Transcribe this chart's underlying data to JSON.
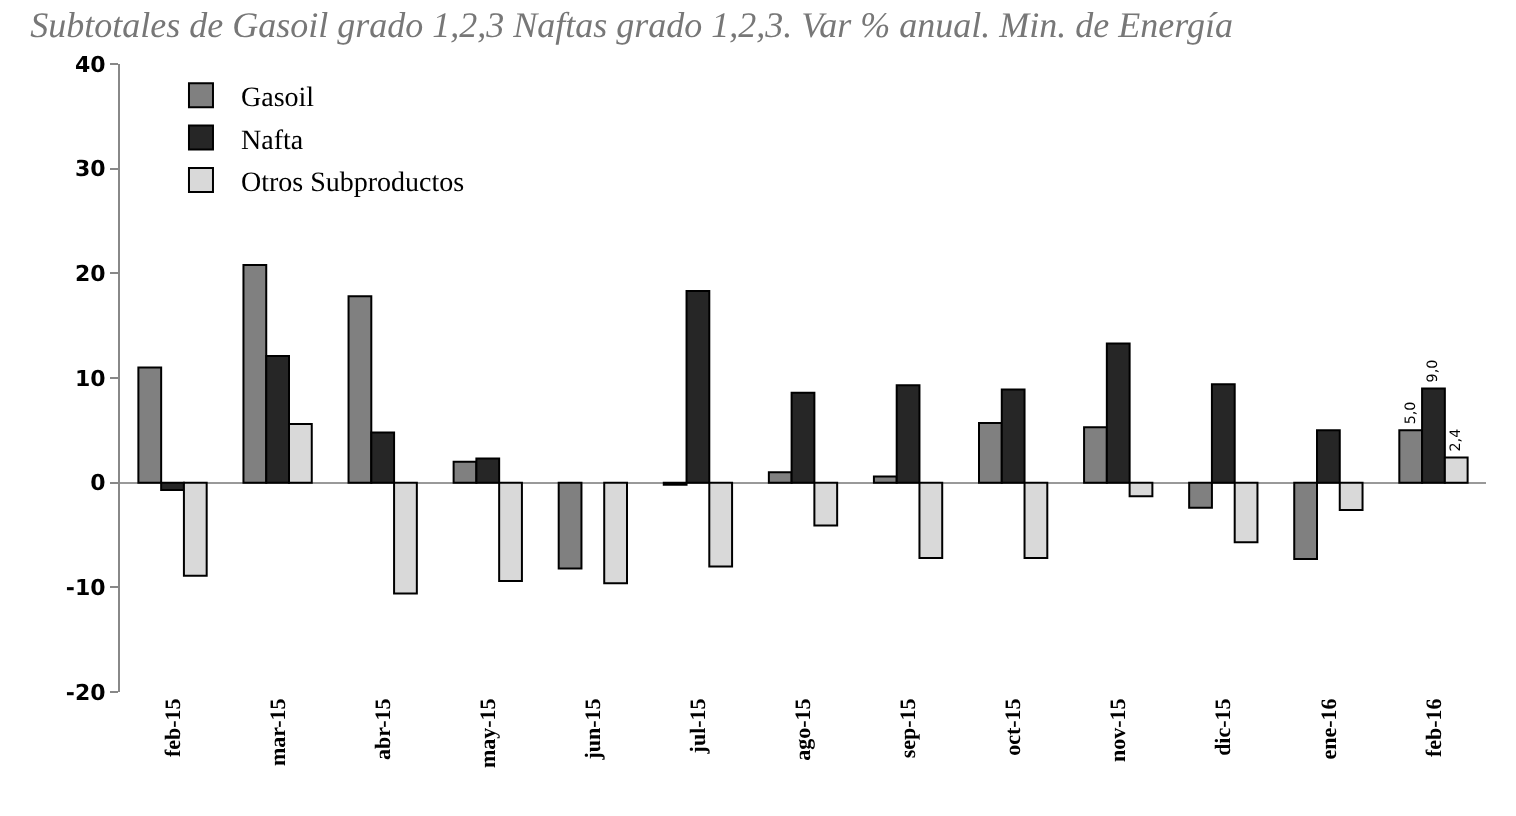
{
  "chart_data": {
    "type": "bar",
    "title": "Subtotales de Gasoil grado 1,2,3 Naftas grado 1,2,3. Var % anual. Min. de Energía",
    "categories": [
      "feb-15",
      "mar-15",
      "abr-15",
      "may-15",
      "jun-15",
      "jul-15",
      "ago-15",
      "sep-15",
      "oct-15",
      "nov-15",
      "dic-15",
      "ene-16",
      "feb-16"
    ],
    "series": [
      {
        "name": "Gasoil",
        "color": "#808080",
        "values": [
          11,
          20.8,
          17.8,
          2,
          -8.2,
          -0.2,
          1,
          0.6,
          5.7,
          5.3,
          -2.4,
          -7.3,
          5
        ],
        "value_labels": [
          null,
          null,
          null,
          null,
          null,
          null,
          null,
          null,
          null,
          null,
          null,
          null,
          "5,0"
        ]
      },
      {
        "name": "Nafta",
        "color": "#262626",
        "values": [
          -0.7,
          12.1,
          4.8,
          2.3,
          null,
          18.3,
          8.6,
          9.3,
          8.9,
          13.3,
          9.4,
          5,
          9
        ],
        "value_labels": [
          null,
          null,
          null,
          null,
          null,
          null,
          null,
          null,
          null,
          null,
          null,
          null,
          "9,0"
        ]
      },
      {
        "name": "Otros Subproductos",
        "color": "#d9d9d9",
        "values": [
          -8.9,
          5.6,
          -10.6,
          -9.4,
          -9.6,
          -8,
          -4.1,
          -7.2,
          -7.2,
          -1.3,
          -5.7,
          -2.6,
          2.4
        ],
        "value_labels": [
          null,
          null,
          null,
          null,
          null,
          null,
          null,
          null,
          null,
          null,
          null,
          null,
          "2,4"
        ]
      }
    ],
    "ylim": [
      -20,
      40
    ],
    "yticks": [
      -20,
      -10,
      0,
      10,
      20,
      30,
      40
    ],
    "legend": "top left"
  }
}
